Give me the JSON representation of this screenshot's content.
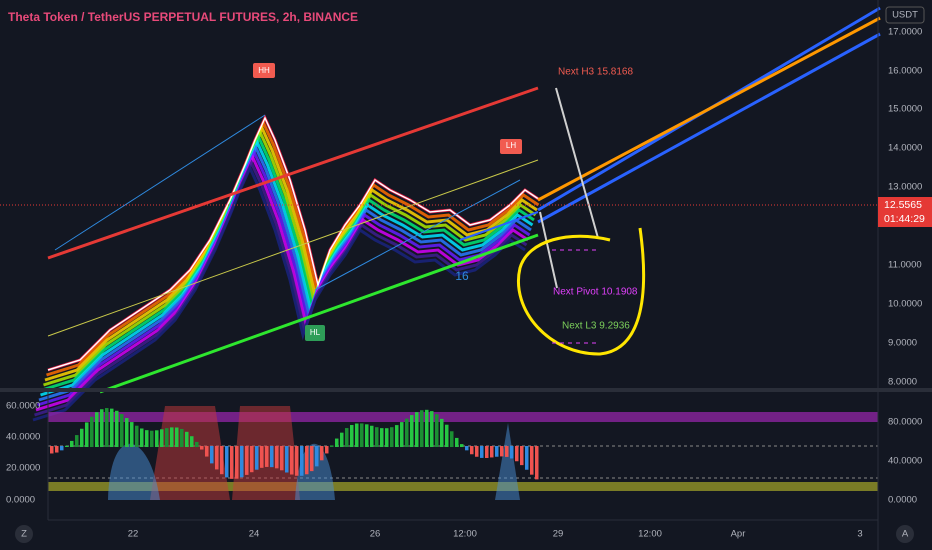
{
  "header": {
    "title": "Theta Token / TetherUS PERPETUAL FUTURES, 2h, BINANCE"
  },
  "price_axis": {
    "currency": "USDT",
    "labels": [
      "17.0000",
      "16.0000",
      "15.0000",
      "14.0000",
      "13.0000",
      "11.0000",
      "10.0000",
      "9.0000",
      "8.0000"
    ],
    "current_price": "12.5565",
    "countdown": "01:44:29"
  },
  "indicator_axis": {
    "left_labels": [
      "60.0000",
      "40.0000",
      "20.0000",
      "0.0000"
    ],
    "right_labels": [
      "80.0000",
      "40.0000",
      "0.0000"
    ]
  },
  "time_axis": {
    "labels": [
      "22",
      "24",
      "26",
      "12:00",
      "29",
      "12:00",
      "Apr",
      "3"
    ]
  },
  "annotations": {
    "hh": "HH",
    "lh": "LH",
    "hl": "HL",
    "count": "16",
    "next_h3": "Next H3 15.8168",
    "next_pivot": "Next Pivot 10.1908",
    "next_l3": "Next L3 9.2936"
  },
  "buttons": {
    "left": "Z",
    "right": "A"
  }
}
